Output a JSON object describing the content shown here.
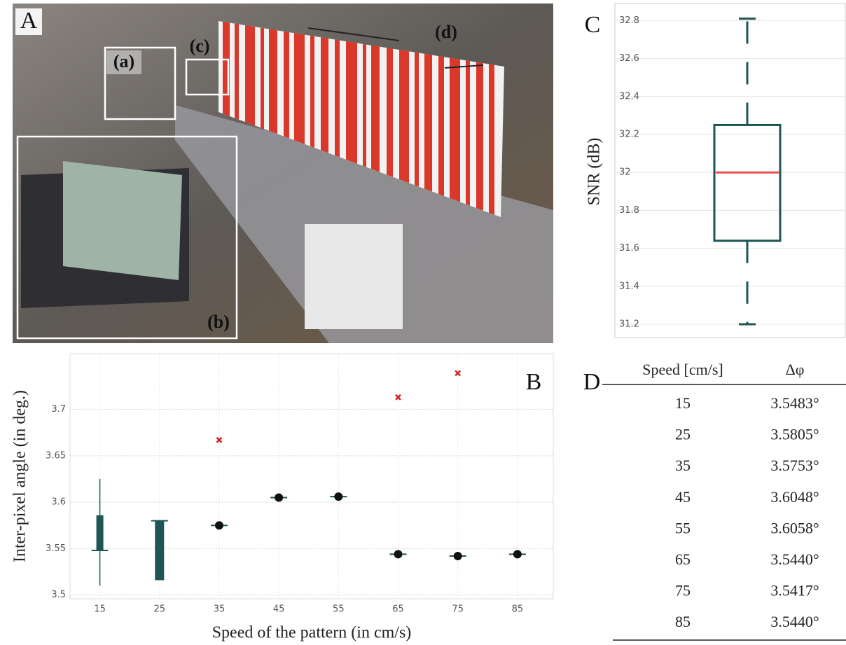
{
  "photo": {
    "panel": "A",
    "annotations": [
      "(a)",
      "(b)",
      "(c)",
      "(d)"
    ]
  },
  "chart_data": [
    {
      "type": "box",
      "panel": "C",
      "ylabel": "SNR (dB)",
      "whislo": 31.2,
      "q1": 31.64,
      "median": 32.0,
      "q3": 32.25,
      "whishi": 32.81,
      "color": "#1d5654",
      "median_color": "#e8524d",
      "ylim": [
        31.13,
        32.89
      ],
      "yticks": [
        31.2,
        31.4,
        31.6,
        31.8,
        32,
        32.2,
        32.4,
        32.6,
        32.8
      ],
      "grid": true
    },
    {
      "type": "boxes",
      "panel": "B",
      "xlabel": "Speed of the pattern (in cm/s)",
      "ylabel": "Inter-pixel angle (in deg.)",
      "x": [
        15,
        25,
        35,
        45,
        55,
        65,
        75,
        85
      ],
      "median": [
        3.548,
        3.58,
        3.575,
        3.605,
        3.606,
        3.544,
        3.542,
        3.544
      ],
      "q1": [
        3.548,
        3.516,
        null,
        null,
        null,
        null,
        null,
        null
      ],
      "q3": [
        3.586,
        3.58,
        null,
        null,
        null,
        null,
        null,
        null
      ],
      "whislo": [
        3.51,
        null,
        null,
        null,
        null,
        null,
        null,
        null
      ],
      "whishi": [
        3.625,
        null,
        null,
        null,
        null,
        null,
        null,
        null
      ],
      "outliers": [
        null,
        null,
        3.667,
        null,
        null,
        3.713,
        3.739,
        null
      ],
      "color": "#1d5654",
      "point_color": "#111111",
      "outlier_color": "#e01b1b",
      "xlim": [
        10,
        91
      ],
      "xticks": [
        15,
        25,
        35,
        45,
        55,
        65,
        75,
        85
      ],
      "ylim": [
        3.496,
        3.76
      ],
      "yticks": [
        3.5,
        3.55,
        3.6,
        3.65,
        3.7
      ],
      "grid": true
    }
  ],
  "table": {
    "panel": "D",
    "header": [
      "Speed [cm/s]",
      "Δφ"
    ],
    "rows": [
      [
        "15",
        "3.5483°"
      ],
      [
        "25",
        "3.5805°"
      ],
      [
        "35",
        "3.5753°"
      ],
      [
        "45",
        "3.6048°"
      ],
      [
        "55",
        "3.6058°"
      ],
      [
        "65",
        "3.5440°"
      ],
      [
        "75",
        "3.5417°"
      ],
      [
        "85",
        "3.5440°"
      ]
    ]
  }
}
